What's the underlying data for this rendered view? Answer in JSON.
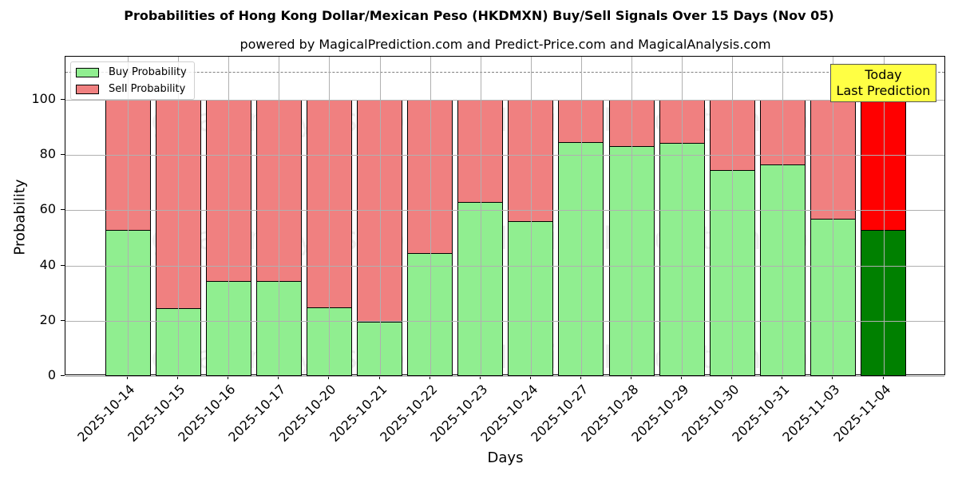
{
  "chart_data": {
    "type": "bar",
    "stacked": true,
    "title": "Probabilities of Hong Kong Dollar/Mexican Peso (HKDMXN) Buy/Sell Signals Over 15 Days (Nov 05)",
    "subtitle": "powered by MagicalPrediction.com and Predict-Price.com and MagicalAnalysis.com",
    "xlabel": "Days",
    "ylabel": "Probability",
    "ylim": [
      0,
      115
    ],
    "yticks": [
      0,
      20,
      40,
      60,
      80,
      100
    ],
    "grid": true,
    "legend_position": "upper left",
    "reference_line": {
      "y": 110,
      "style": "dashed"
    },
    "categories": [
      "2025-10-14",
      "2025-10-15",
      "2025-10-16",
      "2025-10-17",
      "2025-10-20",
      "2025-10-21",
      "2025-10-22",
      "2025-10-23",
      "2025-10-24",
      "2025-10-27",
      "2025-10-28",
      "2025-10-29",
      "2025-10-30",
      "2025-10-31",
      "2025-11-03",
      "2025-11-04"
    ],
    "series": [
      {
        "name": "Buy Probability",
        "color": "#90ee90",
        "values": [
          52.9,
          24.6,
          34.4,
          34.4,
          24.9,
          19.7,
          44.5,
          63.0,
          56.1,
          84.7,
          83.2,
          84.4,
          74.6,
          76.6,
          56.9,
          52.9
        ]
      },
      {
        "name": "Sell Probability",
        "color": "#f08080",
        "values": [
          47.1,
          75.4,
          65.6,
          65.6,
          75.1,
          80.3,
          55.5,
          37.0,
          43.9,
          15.3,
          16.8,
          15.6,
          25.4,
          23.4,
          43.1,
          47.1
        ]
      }
    ],
    "highlight": {
      "index": 15,
      "buy_color": "#008000",
      "sell_color": "#ff0000"
    },
    "annotation": {
      "line1": "Today",
      "line2": "Last Prediction",
      "bg": "#ffff44"
    },
    "watermarks": [
      "MagicalAnalysis.com",
      "MagicalPrediction.com"
    ]
  }
}
